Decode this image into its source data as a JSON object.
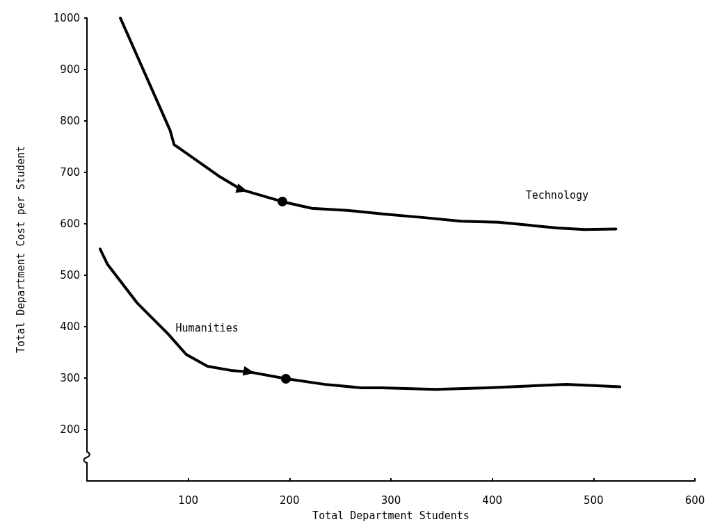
{
  "chart_data": {
    "type": "line",
    "xlabel": "Total Department Students",
    "ylabel": "Total Department Cost per Student",
    "xlim": [
      0,
      600
    ],
    "xticks": [
      100,
      200,
      300,
      400,
      500,
      600
    ],
    "ylim": [
      100,
      1000
    ],
    "yticks": [
      200,
      300,
      400,
      500,
      600,
      700,
      800,
      900,
      1000
    ],
    "grid": false,
    "legend": false,
    "marker": "none",
    "line_style": "solid",
    "series": [
      {
        "name": "Technology",
        "color": "#000000",
        "x": [
          33,
          82,
          86,
          130,
          153,
          193,
          222,
          257,
          293,
          333,
          369,
          406,
          464,
          491,
          522
        ],
        "values": [
          1000,
          782,
          754,
          693,
          666,
          643,
          630,
          626,
          619,
          612,
          605,
          603,
          592,
          589,
          590
        ]
      },
      {
        "name": "Humanities",
        "color": "#000000",
        "x": [
          13,
          20,
          50,
          80,
          98,
          119,
          142,
          160,
          196,
          234,
          271,
          291,
          344,
          395,
          441,
          473,
          526
        ],
        "values": [
          551,
          522,
          445,
          386,
          346,
          323,
          315,
          312,
          299,
          288,
          281,
          281,
          278,
          281,
          285,
          288,
          283
        ]
      }
    ]
  }
}
